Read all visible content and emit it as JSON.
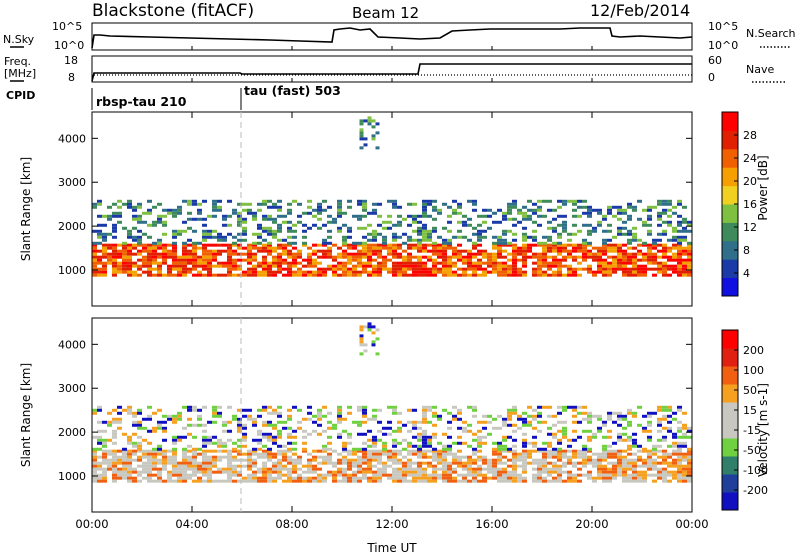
{
  "header": {
    "station": "Blackstone (fitACF)",
    "beam": "Beam 12",
    "date": "12/Feb/2014"
  },
  "params": {
    "nsky_label": "N.Sky",
    "nsky_ticks": [
      "10^5",
      "10^0"
    ],
    "nsearch_label": "N.Search",
    "nsearch_ticks": [
      "10^5",
      "10^0"
    ],
    "freq_label": "Freq.",
    "freq_unit": "[MHz]",
    "freq_ticks": [
      "18",
      "8"
    ],
    "nave_label": "Nave",
    "nave_ticks": [
      "60",
      "0"
    ],
    "cpid_label": "CPID",
    "cpid_modes": [
      {
        "name": "rbsp-tau 210",
        "start_hour": 0,
        "end_hour": 6
      },
      {
        "name": "tau (fast) 503",
        "start_hour": 6,
        "end_hour": 24
      }
    ]
  },
  "colors": {
    "power_scale": [
      "#1010e0",
      "#1a3aa8",
      "#2f6f8a",
      "#3f8a5a",
      "#7fc040",
      "#f0d020",
      "#f5a000",
      "#f06000",
      "#e02000",
      "#ff0000"
    ],
    "velocity_scale": [
      "#1010c0",
      "#1f3f9a",
      "#2f7f6a",
      "#6fd040",
      "#c8c8c0",
      "#c8c8c0",
      "#f5a020",
      "#f06010",
      "#e02010",
      "#ff0000"
    ]
  },
  "chart_data": [
    {
      "type": "heatmap",
      "title": "Power",
      "ylabel": "Slant Range [km]",
      "yticks": [
        "1000",
        "2000",
        "3000",
        "4000"
      ],
      "ylim": [
        180,
        4600
      ],
      "xlim_hours": [
        0,
        24
      ],
      "colorbar_label": "Power [dB]",
      "colorbar_ticks": [
        "4",
        "8",
        "12",
        "16",
        "20",
        "24",
        "28"
      ],
      "features": [
        {
          "name": "main echo band",
          "start_hour": 0,
          "end_hour": 24,
          "range_km": [
            900,
            1600
          ]
        },
        {
          "name": "upper scatter",
          "start_hour": 0,
          "end_hour": 24,
          "range_km": [
            1600,
            2600
          ]
        },
        {
          "name": "high range patch",
          "start_hour": 10.7,
          "end_hour": 11.4,
          "range_km": [
            3800,
            4500
          ]
        }
      ]
    },
    {
      "type": "heatmap",
      "title": "Velocity",
      "ylabel": "Slant Range [km]",
      "yticks": [
        "1000",
        "2000",
        "3000",
        "4000"
      ],
      "ylim": [
        180,
        4600
      ],
      "xlim_hours": [
        0,
        24
      ],
      "colorbar_label": "Velocity [m s-1]",
      "colorbar_ticks": [
        "200",
        "100",
        "50",
        "15",
        "-15",
        "-50",
        "-100",
        "-200"
      ],
      "features": [
        {
          "name": "main echo band",
          "start_hour": 0,
          "end_hour": 24,
          "range_km": [
            900,
            1600
          ]
        },
        {
          "name": "upper scatter",
          "start_hour": 0,
          "end_hour": 24,
          "range_km": [
            1600,
            2600
          ]
        }
      ]
    }
  ],
  "xaxis": {
    "ticks": [
      "00:00",
      "04:00",
      "08:00",
      "12:00",
      "16:00",
      "20:00",
      "00:00"
    ],
    "label": "Time UT"
  }
}
